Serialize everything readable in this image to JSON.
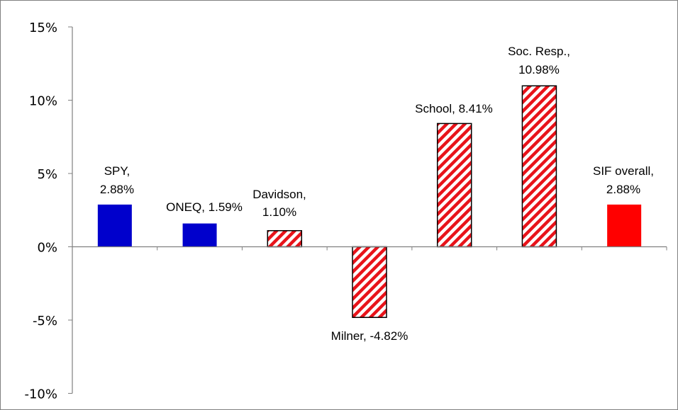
{
  "chart_data": {
    "type": "bar",
    "categories": [
      "SPY",
      "ONEQ",
      "Davidson",
      "Milner",
      "School",
      "Soc. Resp.",
      "SIF overall"
    ],
    "values": [
      2.88,
      1.59,
      1.1,
      -4.82,
      8.41,
      10.98,
      2.88
    ],
    "data_labels": [
      [
        "SPY,",
        "2.88%"
      ],
      [
        "ONEQ, 1.59%"
      ],
      [
        "Davidson,",
        "1.10%"
      ],
      [
        "Milner, -4.82%"
      ],
      [
        "School, 8.41%"
      ],
      [
        "Soc. Resp.,",
        "10.98%"
      ],
      [
        "SIF overall,",
        "2.88%"
      ]
    ],
    "bar_styles": [
      "solid-blue",
      "solid-blue",
      "hatched-red",
      "hatched-red",
      "hatched-red",
      "hatched-red",
      "solid-red"
    ],
    "colors": {
      "blue": "#0000CC",
      "red": "#FF0000",
      "hatch": "#E8131A",
      "outline": "#000000"
    },
    "y_ticks": [
      "15%",
      "10%",
      "5%",
      "0%",
      "-5%",
      "-10%"
    ],
    "y_tick_values": [
      15,
      10,
      5,
      0,
      -5,
      -10
    ],
    "ylim": [
      -10,
      15
    ],
    "title": "",
    "xlabel": "",
    "ylabel": "",
    "grid": false,
    "legend": "none"
  }
}
